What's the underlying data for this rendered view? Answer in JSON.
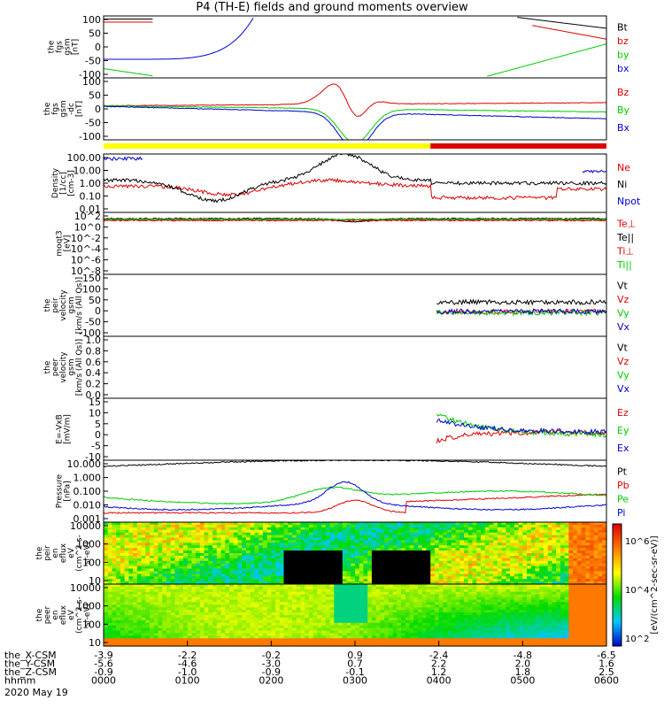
{
  "title": "P4 (TH-E) fields and ground moments overview",
  "footer_date": "2020 May 19",
  "colors": {
    "black": "#000000",
    "red": "#dd0000",
    "green": "#00cc00",
    "blue": "#0000cc",
    "yellow": "#ffff00"
  },
  "ephemeris": {
    "row_labels": [
      "the_X-CSM",
      "the_Y-CSM",
      "the_Z-CSM",
      "hhmm"
    ],
    "columns": [
      [
        "-3.9",
        "-5.6",
        "-0.9",
        "0000"
      ],
      [
        "-2.2",
        "-4.6",
        "-1.0",
        "0100"
      ],
      [
        "-0.2",
        "-3.0",
        "-0.9",
        "0200"
      ],
      [
        "0.9",
        "0.7",
        "-0.1",
        "0300"
      ],
      [
        "-2.4",
        "2.2",
        "1.2",
        "0400"
      ],
      [
        "-4.8",
        "2.0",
        "1.8",
        "0500"
      ],
      [
        "-6.5",
        "1.6",
        "2.5",
        "0600"
      ]
    ]
  },
  "spectrogram_colorbar": {
    "label": "[eV/(cm^2-sec-sr-eV)]",
    "ticks": [
      "10^2",
      "10^4",
      "10^6"
    ]
  },
  "chart_data": [
    {
      "id": "fgs-gsm",
      "type": "line",
      "ylabel": [
        "the",
        "fgs",
        "gsm",
        "[nT]"
      ],
      "ticks": [
        "100",
        "50",
        "0",
        "-50",
        "-100"
      ],
      "ylim": [
        -100,
        100
      ],
      "scale": "linear",
      "series": [
        {
          "name": "Bt",
          "color": "black"
        },
        {
          "name": "bz",
          "color": "red"
        },
        {
          "name": "by",
          "color": "green"
        },
        {
          "name": "bx",
          "color": "blue"
        }
      ]
    },
    {
      "id": "fgs-gsm-dc",
      "type": "line",
      "ylabel": [
        "the",
        "fgs",
        "gsm",
        "-dc",
        "[nT]"
      ],
      "ticks": [
        "100",
        "50",
        "0",
        "-50",
        "-100"
      ],
      "ylim": [
        -120,
        120
      ],
      "scale": "linear",
      "series": [
        {
          "name": "Bz",
          "color": "red"
        },
        {
          "name": "By",
          "color": "green"
        },
        {
          "name": "Bx",
          "color": "blue"
        }
      ]
    },
    {
      "id": "density",
      "type": "line",
      "ylabel": [
        "Density",
        "[1/cc]",
        "[cm-3]"
      ],
      "ticks": [
        "100.00",
        "10.00",
        "1.00",
        "0.10",
        "0.01"
      ],
      "ylim": [
        0.01,
        200
      ],
      "scale": "log",
      "series": [
        {
          "name": "Ne",
          "color": "red"
        },
        {
          "name": "Ni",
          "color": "black"
        },
        {
          "name": "Npot",
          "color": "blue"
        }
      ]
    },
    {
      "id": "temperature",
      "type": "line",
      "ylabel": [
        "moqt3",
        "[eV]"
      ],
      "ticks": [
        "10^2",
        "10^0",
        "10^-2",
        "10^-4",
        "10^-6",
        "10^-8"
      ],
      "ylim": [
        1e-09,
        1000
      ],
      "scale": "log",
      "series": [
        {
          "name": "Te⊥",
          "color": "red"
        },
        {
          "name": "Te||",
          "color": "black"
        },
        {
          "name": "Ti⊥",
          "color": "red"
        },
        {
          "name": "Ti||",
          "color": "green"
        }
      ]
    },
    {
      "id": "peir-velocity",
      "type": "line",
      "ylabel": [
        "the",
        "peir",
        "velocity",
        "gsm",
        "[km/s (All Qs)]"
      ],
      "ticks": [
        "150",
        "100",
        "50",
        "0",
        "-50",
        "-100"
      ],
      "ylim": [
        -100,
        150
      ],
      "scale": "linear",
      "series": [
        {
          "name": "Vt",
          "color": "black"
        },
        {
          "name": "Vz",
          "color": "red"
        },
        {
          "name": "Vy",
          "color": "green"
        },
        {
          "name": "Vx",
          "color": "blue"
        }
      ]
    },
    {
      "id": "peer-velocity",
      "type": "line",
      "ylabel": [
        "the",
        "peer",
        "velocity",
        "gsm",
        "[km/s (All Qs)]"
      ],
      "ticks": [
        "1.0",
        "0.8",
        "0.6",
        "0.4",
        "0.2",
        "0.0"
      ],
      "ylim": [
        0,
        1
      ],
      "scale": "linear",
      "series": [
        {
          "name": "Vt",
          "color": "black"
        },
        {
          "name": "Vz",
          "color": "red"
        },
        {
          "name": "Vy",
          "color": "green"
        },
        {
          "name": "Vx",
          "color": "blue"
        }
      ]
    },
    {
      "id": "efield",
      "type": "line",
      "ylabel": [
        "E=-VxB",
        "[mV/m]"
      ],
      "ticks": [
        "15",
        "10",
        "5",
        "0",
        "-5",
        "-10"
      ],
      "ylim": [
        -12,
        15
      ],
      "scale": "linear",
      "series": [
        {
          "name": "Ez",
          "color": "red"
        },
        {
          "name": "Ey",
          "color": "green"
        },
        {
          "name": "Ex",
          "color": "blue"
        }
      ]
    },
    {
      "id": "pressure",
      "type": "line",
      "ylabel": [
        "Pressure",
        "[nPa]"
      ],
      "ticks": [
        "10.000",
        "1.000",
        "0.100",
        "0.010",
        "0.001"
      ],
      "ylim": [
        0.001,
        30
      ],
      "scale": "log",
      "series": [
        {
          "name": "Pt",
          "color": "black"
        },
        {
          "name": "Pb",
          "color": "red"
        },
        {
          "name": "Pe",
          "color": "green"
        },
        {
          "name": "Pi",
          "color": "blue"
        }
      ]
    },
    {
      "id": "peir-eflux",
      "type": "heatmap",
      "ylabel": [
        "the",
        "peir",
        "en",
        "eflux",
        "eV",
        "(cm^2-s-",
        "sr-eV)"
      ],
      "ticks": [
        "10000",
        "1000",
        "100",
        "10"
      ],
      "ylim": [
        5,
        30000
      ],
      "scale": "log"
    },
    {
      "id": "peer-eflux",
      "type": "heatmap",
      "ylabel": [
        "the",
        "peer",
        "en",
        "eflux",
        "eV",
        "(cm^2-s-",
        "sr-eV)"
      ],
      "ticks": [
        "10000",
        "1000",
        "100",
        "10"
      ],
      "ylim": [
        5,
        30000
      ],
      "scale": "log"
    }
  ]
}
